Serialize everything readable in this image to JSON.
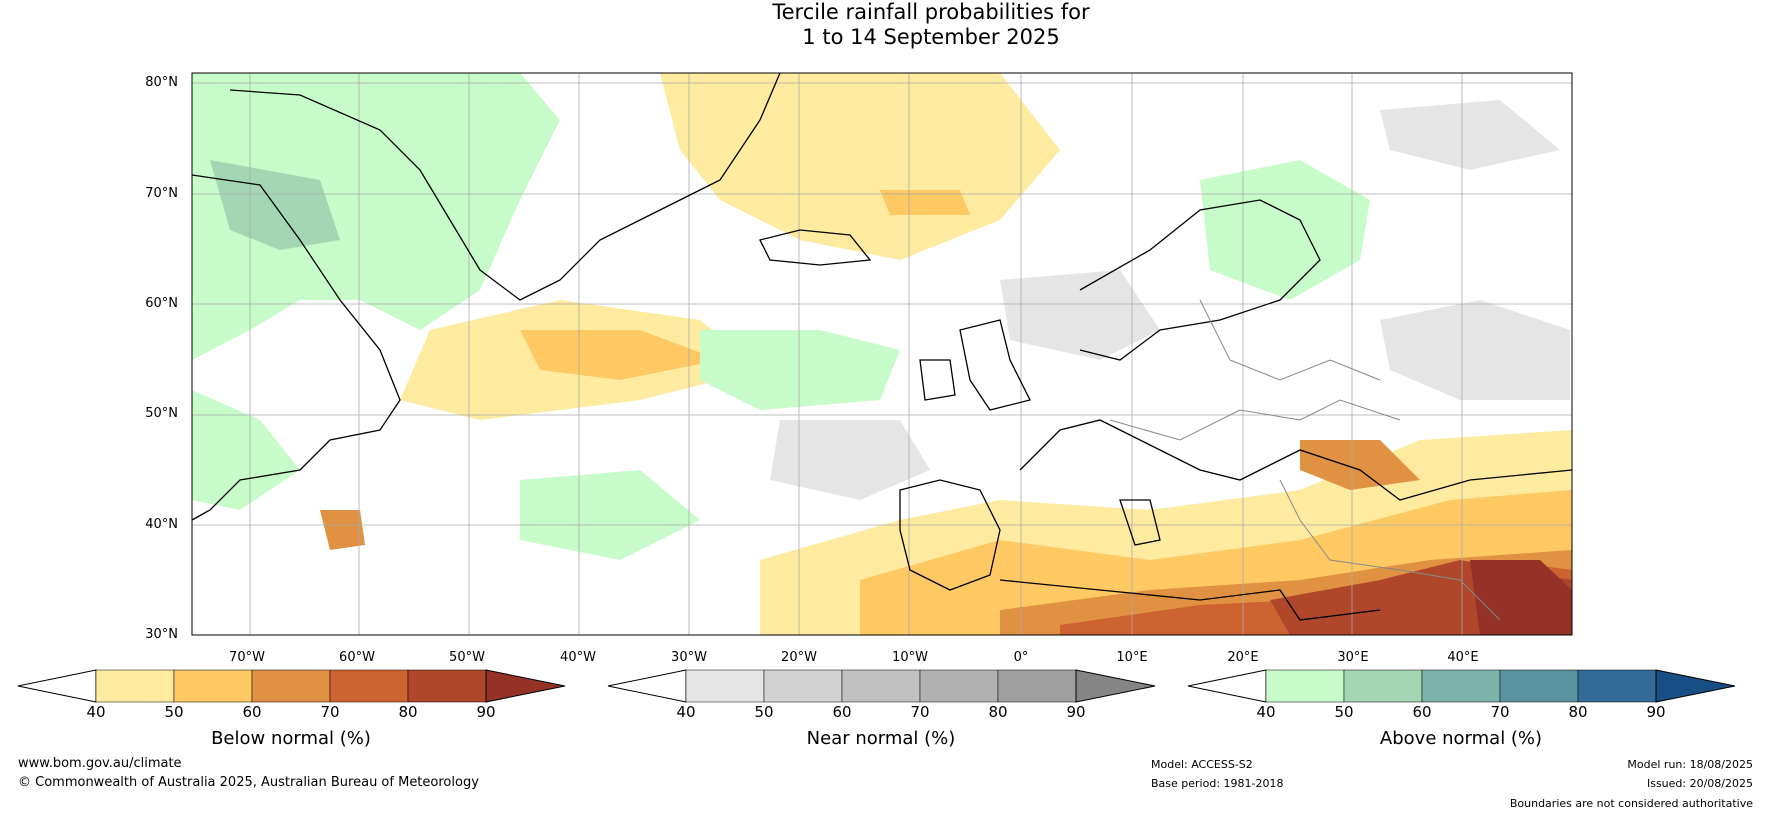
{
  "title": {
    "line1": "Tercile rainfall probabilities for",
    "line2": "1 to 14 September 2025"
  },
  "map": {
    "lat_labels": [
      "80°N",
      "70°N",
      "60°N",
      "50°N",
      "40°N",
      "30°N"
    ],
    "lon_labels": [
      "70°W",
      "60°W",
      "50°W",
      "40°W",
      "30°W",
      "20°W",
      "10°W",
      "0°",
      "10°E",
      "20°E",
      "30°E",
      "40°E"
    ]
  },
  "colorbars": [
    {
      "title": "Below normal (%)",
      "ticks": [
        "40",
        "50",
        "60",
        "70",
        "80",
        "90"
      ],
      "colors": [
        "#ffffff",
        "#feeb9f",
        "#fec862",
        "#e09142",
        "#cd6330",
        "#b0472a",
        "#943228"
      ]
    },
    {
      "title": "Near normal (%)",
      "ticks": [
        "40",
        "50",
        "60",
        "70",
        "80",
        "90"
      ],
      "colors": [
        "#ffffff",
        "#e5e5e5",
        "#d2d2d2",
        "#c1c1c1",
        "#b1b1b1",
        "#a0a0a0",
        "#858585"
      ]
    },
    {
      "title": "Above normal (%)",
      "ticks": [
        "40",
        "50",
        "60",
        "70",
        "80",
        "90"
      ],
      "colors": [
        "#ffffff",
        "#c7fbc9",
        "#a4d6b4",
        "#7db2ab",
        "#5a93a0",
        "#346a97",
        "#164e85"
      ]
    }
  ],
  "footer": {
    "website": "www.bom.gov.au/climate",
    "copyright": "© Commonwealth of Australia 2025, Australian Bureau of Meteorology",
    "model": "Model: ACCESS-S2",
    "base_period": "Base period: 1981-2018",
    "model_run": "Model run: 18/08/2025",
    "issued": "Issued: 20/08/2025",
    "disclaimer": "Boundaries are not considered authoritative"
  }
}
